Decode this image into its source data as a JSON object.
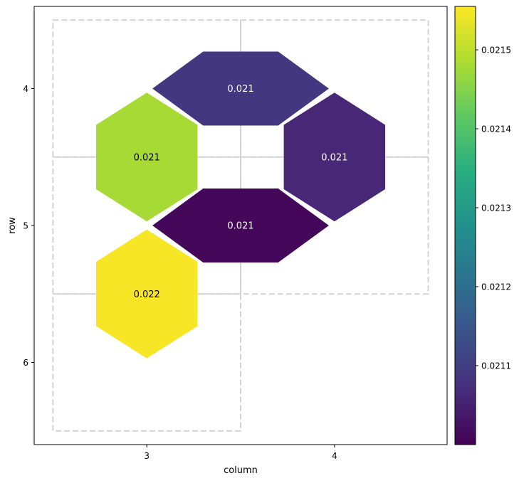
{
  "chart_data": {
    "type": "heatmap",
    "title": "",
    "xlabel": "column",
    "ylabel": "row",
    "x_ticks": [
      3,
      4
    ],
    "y_ticks": [
      4,
      5,
      6
    ],
    "xlim": [
      2.4,
      4.6
    ],
    "ylim": [
      6.6,
      3.4
    ],
    "grid": false,
    "cells": [
      {
        "kind": "hex",
        "x": 3,
        "y": 4.5,
        "value": 0.02148,
        "label": "0.021",
        "label_color": "#000000"
      },
      {
        "kind": "hex",
        "x": 4,
        "y": 4.5,
        "value": 0.02106,
        "label": "0.021",
        "label_color": "#ffffff"
      },
      {
        "kind": "hex",
        "x": 3,
        "y": 5.5,
        "value": 0.02155,
        "label": "0.022",
        "label_color": "#000000"
      },
      {
        "kind": "edge",
        "x": 3.5,
        "y": 4,
        "value": 0.02109,
        "label": "0.021",
        "label_color": "#ffffff"
      },
      {
        "kind": "edge",
        "x": 3.5,
        "y": 5,
        "value": 0.02101,
        "label": "0.021",
        "label_color": "#ffffff"
      }
    ],
    "dashed_boxes": [
      {
        "x0": 2.5,
        "x1": 3.5,
        "y0": 3.5,
        "y1": 4.5
      },
      {
        "x0": 3.5,
        "x1": 4.5,
        "y0": 3.5,
        "y1": 4.5
      },
      {
        "x0": 2.5,
        "x1": 3.5,
        "y0": 4.5,
        "y1": 5.5
      },
      {
        "x0": 3.5,
        "x1": 4.5,
        "y0": 4.5,
        "y1": 5.5
      },
      {
        "x0": 2.5,
        "x1": 3.5,
        "y0": 5.5,
        "y1": 6.5
      }
    ],
    "colorbar": {
      "colormap": "viridis",
      "min": 0.021,
      "max": 0.021555,
      "ticks": [
        "0.0211",
        "0.0212",
        "0.0213",
        "0.0214",
        "0.0215"
      ],
      "tick_values": [
        0.0211,
        0.0212,
        0.0213,
        0.0214,
        0.0215
      ]
    }
  }
}
